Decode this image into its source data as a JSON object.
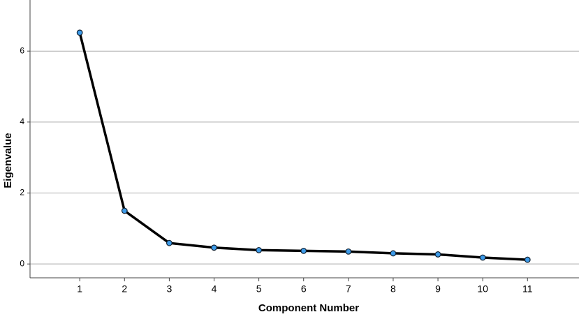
{
  "chart_data": {
    "type": "line",
    "x_label": "Component Number",
    "y_label": "Eigenvalue",
    "x": [
      1,
      2,
      3,
      4,
      5,
      6,
      7,
      8,
      9,
      10,
      11
    ],
    "series": [
      {
        "name": "Eigenvalue",
        "color": "#3d9be9",
        "values": [
          6.52,
          1.5,
          0.59,
          0.46,
          0.39,
          0.37,
          0.35,
          0.3,
          0.27,
          0.18,
          0.12
        ]
      }
    ],
    "xlim": [
      -0.11,
      12.15
    ],
    "xticks": [
      1,
      2,
      3,
      4,
      5,
      6,
      7,
      8,
      9,
      10,
      11
    ],
    "ylim": [
      -0.39,
      7.44
    ],
    "yticks": [
      0,
      2,
      4,
      6
    ],
    "grid": true
  }
}
